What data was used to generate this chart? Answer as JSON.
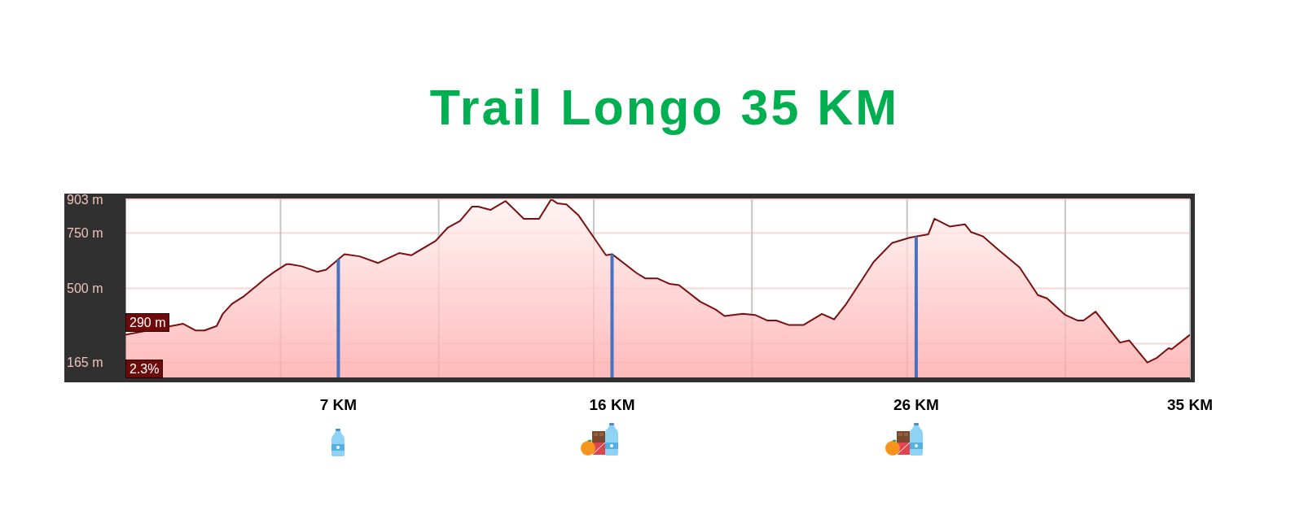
{
  "chart_data": {
    "type": "area",
    "title": "Trail Longo 35 KM",
    "x": [
      0,
      1.9,
      2.3,
      2.6,
      3.0,
      3.2,
      3.5,
      3.9,
      4.3,
      4.6,
      4.9,
      5.3,
      5.4,
      5.8,
      6.3,
      6.6,
      7.2,
      7.7,
      8.3,
      9.0,
      9.4,
      10.2,
      10.6,
      11.0,
      11.4,
      11.6,
      12.0,
      12.5,
      13.1,
      13.6,
      14.0,
      14.2,
      14.5,
      14.9,
      15.4,
      15.8,
      16.0,
      16.8,
      17.1,
      17.5,
      17.9,
      18.2,
      18.9,
      19.4,
      19.7,
      20.3,
      20.7,
      21.1,
      21.4,
      21.8,
      22.3,
      22.9,
      23.3,
      23.7,
      24.2,
      24.6,
      25.2,
      25.8,
      26.4,
      26.6,
      27.1,
      27.6,
      27.8,
      28.2,
      28.7,
      29.4,
      30.0,
      30.3,
      30.9,
      31.3,
      31.5,
      31.9,
      32.7,
      33.0,
      33.6,
      33.9,
      34.3,
      34.4,
      35
    ],
    "values": [
      290,
      340,
      310,
      310,
      330,
      385,
      430,
      465,
      510,
      545,
      575,
      610,
      610,
      600,
      575,
      585,
      655,
      645,
      615,
      660,
      650,
      715,
      775,
      805,
      870,
      870,
      855,
      895,
      815,
      815,
      903,
      885,
      880,
      830,
      730,
      650,
      655,
      570,
      545,
      545,
      520,
      515,
      440,
      405,
      375,
      385,
      380,
      355,
      355,
      335,
      335,
      385,
      360,
      430,
      535,
      620,
      705,
      730,
      745,
      815,
      780,
      790,
      755,
      735,
      675,
      595,
      470,
      455,
      380,
      355,
      355,
      395,
      255,
      265,
      165,
      185,
      230,
      225,
      290
    ],
    "color": "#7b0f0f",
    "xlim": [
      0,
      35
    ],
    "xticks": [
      {
        "value": 5.1,
        "label": null
      },
      {
        "value": 7,
        "label": "7 KM"
      },
      {
        "value": 10.3,
        "label": null
      },
      {
        "value": 15.4,
        "label": null
      },
      {
        "value": 16,
        "label": "16 KM"
      },
      {
        "value": 20.6,
        "label": null
      },
      {
        "value": 25.7,
        "label": null
      },
      {
        "value": 26,
        "label": "26 KM"
      },
      {
        "value": 30.9,
        "label": null
      },
      {
        "value": 35,
        "label": "35 KM"
      }
    ],
    "ylim": [
      90,
      903
    ],
    "yticks": [
      {
        "value": 165,
        "label": "165 m"
      },
      {
        "value": 250,
        "label": null
      },
      {
        "value": 500,
        "label": "500 m"
      },
      {
        "value": 750,
        "label": "750 m"
      },
      {
        "value": 903,
        "label": "903 m"
      }
    ],
    "grid": true,
    "ref_lines": [
      {
        "axis": "x",
        "value": 7,
        "color": "#4472c4"
      },
      {
        "axis": "x",
        "value": 16,
        "color": "#4472c4"
      },
      {
        "axis": "x",
        "value": 26,
        "color": "#4472c4"
      }
    ],
    "annotations": [
      {
        "text": "290 m",
        "x": 0,
        "y": 290
      },
      "2.3%"
    ]
  }
}
